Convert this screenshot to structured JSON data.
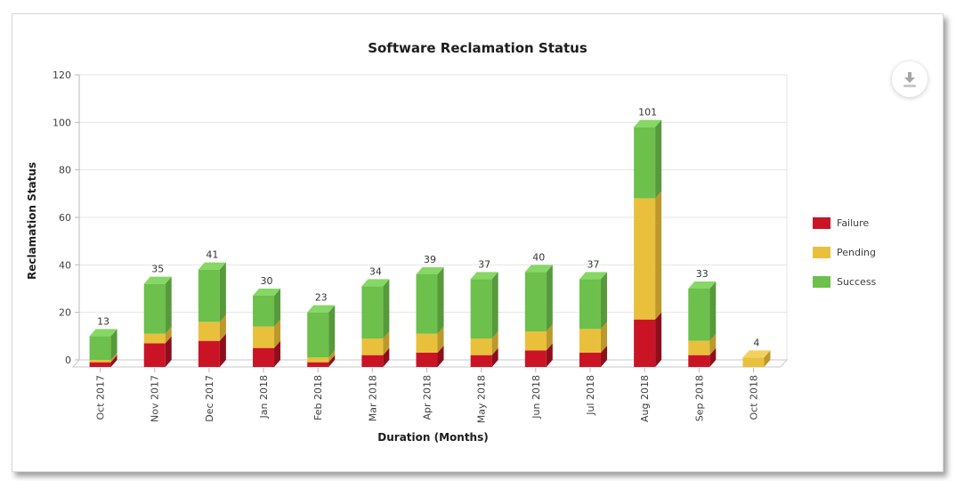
{
  "chart_data": {
    "type": "bar",
    "stacked": true,
    "title": "Software Reclamation Status",
    "xlabel": "Duration (Months)",
    "ylabel": "Reclamation Status",
    "categories": [
      "Oct 2017",
      "Nov 2017",
      "Dec 2017",
      "Jan 2018",
      "Feb 2018",
      "Mar 2018",
      "Apr 2018",
      "May 2018",
      "Jun 2018",
      "Jul 2018",
      "Aug 2018",
      "Sep 2018",
      "Oct 2018"
    ],
    "series": [
      {
        "name": "Failure",
        "color": "#cb1326",
        "side_color": "#8e0e1c",
        "top_color": "#da3a4c",
        "values": [
          2,
          10,
          11,
          8,
          2,
          5,
          6,
          5,
          7,
          6,
          20,
          5,
          0
        ]
      },
      {
        "name": "Pending",
        "color": "#e9c03c",
        "side_color": "#bd982b",
        "top_color": "#f3d160",
        "values": [
          1,
          4,
          8,
          9,
          2,
          7,
          8,
          7,
          8,
          10,
          51,
          6,
          4
        ]
      },
      {
        "name": "Success",
        "color": "#6cc04b",
        "side_color": "#579a3b",
        "top_color": "#86d765",
        "values": [
          10,
          21,
          22,
          13,
          19,
          22,
          25,
          25,
          25,
          21,
          30,
          22,
          0
        ]
      }
    ],
    "totals": [
      13,
      35,
      41,
      30,
      23,
      34,
      39,
      37,
      40,
      37,
      101,
      33,
      4
    ],
    "y_ticks": [
      0,
      20,
      40,
      60,
      80,
      100,
      120
    ],
    "ylim": [
      0,
      120
    ],
    "legend_position": "right",
    "grid": true
  },
  "toolbar": {
    "download_tooltip": "Download"
  },
  "style": {
    "grid_color": "#e4e4e4",
    "axis_color": "#b8b8b8",
    "floor_stroke": "#c9c9c9",
    "tick_text_color": "#3e3e3e",
    "label_text_color": "#333333"
  }
}
